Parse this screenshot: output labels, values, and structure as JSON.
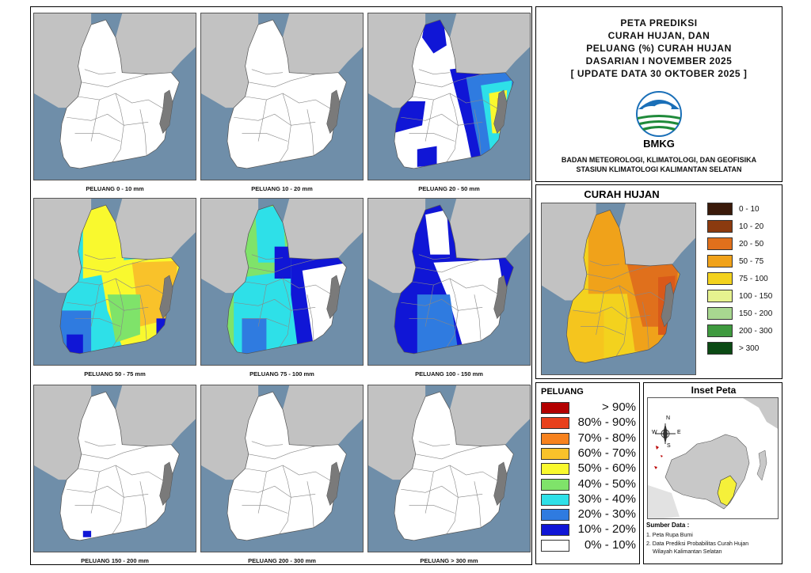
{
  "maps": [
    {
      "caption": "PELUANG 0 - 10 mm"
    },
    {
      "caption": "PELUANG 10 - 20 mm"
    },
    {
      "caption": "PELUANG 20 - 50 mm"
    },
    {
      "caption": "PELUANG 50 - 75 mm"
    },
    {
      "caption": "PELUANG 75 - 100 mm"
    },
    {
      "caption": "PELUANG 100 - 150 mm"
    },
    {
      "caption": "PELUANG 150 - 200 mm"
    },
    {
      "caption": "PELUANG 200 - 300 mm"
    },
    {
      "caption": "PELUANG > 300 mm"
    }
  ],
  "title": {
    "lines": [
      "PETA PREDIKSI",
      "CURAH HUJAN, DAN",
      "PELUANG (%) CURAH HUJAN",
      "DASARIAN I NOVEMBER 2025",
      "[ UPDATE DATA 30 OKTOBER 2025 ]"
    ],
    "logo_text": "BMKG",
    "org_line1": "BADAN METEOROLOGI, KLIMATOLOGI, DAN GEOFISIKA",
    "org_line2": "STASIUN KLIMATOLOGI KALIMANTAN SELATAN"
  },
  "curah_hujan": {
    "title": "CURAH HUJAN",
    "legend": [
      {
        "label": "0 - 10",
        "color": "#3a1a0a"
      },
      {
        "label": "10 - 20",
        "color": "#8b3a0f"
      },
      {
        "label": "20 - 50",
        "color": "#e0701c"
      },
      {
        "label": "50 - 75",
        "color": "#f0a21a"
      },
      {
        "label": "75 - 100",
        "color": "#f3d21e"
      },
      {
        "label": "100 - 150",
        "color": "#e6f28f"
      },
      {
        "label": "150 - 200",
        "color": "#a8d890"
      },
      {
        "label": "200 - 300",
        "color": "#3f9a3f"
      },
      {
        "label": "> 300",
        "color": "#0b4a14"
      }
    ]
  },
  "peluang": {
    "title": "PELUANG",
    "legend": [
      {
        "label": "> 90%",
        "color": "#b30000"
      },
      {
        "label": "80% - 90%",
        "color": "#e8401c"
      },
      {
        "label": "70% - 80%",
        "color": "#f7821e"
      },
      {
        "label": "60% - 70%",
        "color": "#f9c22a"
      },
      {
        "label": "50% - 60%",
        "color": "#f9f92e"
      },
      {
        "label": "40% - 50%",
        "color": "#7fe36a"
      },
      {
        "label": "30% - 40%",
        "color": "#2ee0e8"
      },
      {
        "label": "20% - 30%",
        "color": "#2f7be0"
      },
      {
        "label": "10% - 20%",
        "color": "#1016d6"
      },
      {
        "label": "0% - 10%",
        "color": "#ffffff"
      }
    ]
  },
  "inset": {
    "title": "Inset Peta",
    "compass": {
      "n": "N",
      "s": "S",
      "e": "E",
      "w": "W"
    },
    "source_title": "Sumber Data :",
    "sources": [
      "1. Peta Rupa Bumi",
      "2. Data Prediksi Probabilitas Curah Hujan",
      "Wilayah Kalimantan Selatan"
    ]
  }
}
